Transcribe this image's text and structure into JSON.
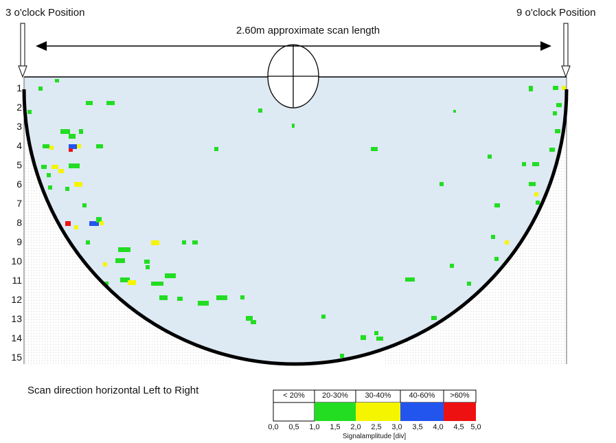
{
  "labels": {
    "left_position": "3 o'clock Position",
    "right_position": "9 o'clock Position",
    "scan_length": "2.60m approximate scan length",
    "scan_direction": "Scan direction horizontal Left to Right"
  },
  "rows": [
    "1",
    "2",
    "3",
    "4",
    "5",
    "6",
    "7",
    "8",
    "9",
    "10",
    "11",
    "12",
    "13",
    "14",
    "15"
  ],
  "legend": {
    "categories": [
      {
        "label": "< 20%",
        "color": "#ffffff"
      },
      {
        "label": "20-30%",
        "color": "#22dd22"
      },
      {
        "label": "30-40%",
        "color": "#f5f500"
      },
      {
        "label": "40-60%",
        "color": "#2255ee"
      },
      {
        "label": ">60%",
        "color": "#ee1111"
      }
    ],
    "ticks": [
      "0,0",
      "0,5",
      "1,0",
      "1,5",
      "2,0",
      "2,5",
      "3,0",
      "3,5",
      "4,0",
      "4,5",
      "5,0"
    ],
    "axis_title": "Signalamplitude [div]"
  },
  "colors": {
    "background_scan": "#dde9f3",
    "hull": "#000000",
    "green": "#22dd22",
    "yellow": "#f5f500",
    "blue": "#2255ee",
    "red": "#ee1111"
  }
}
